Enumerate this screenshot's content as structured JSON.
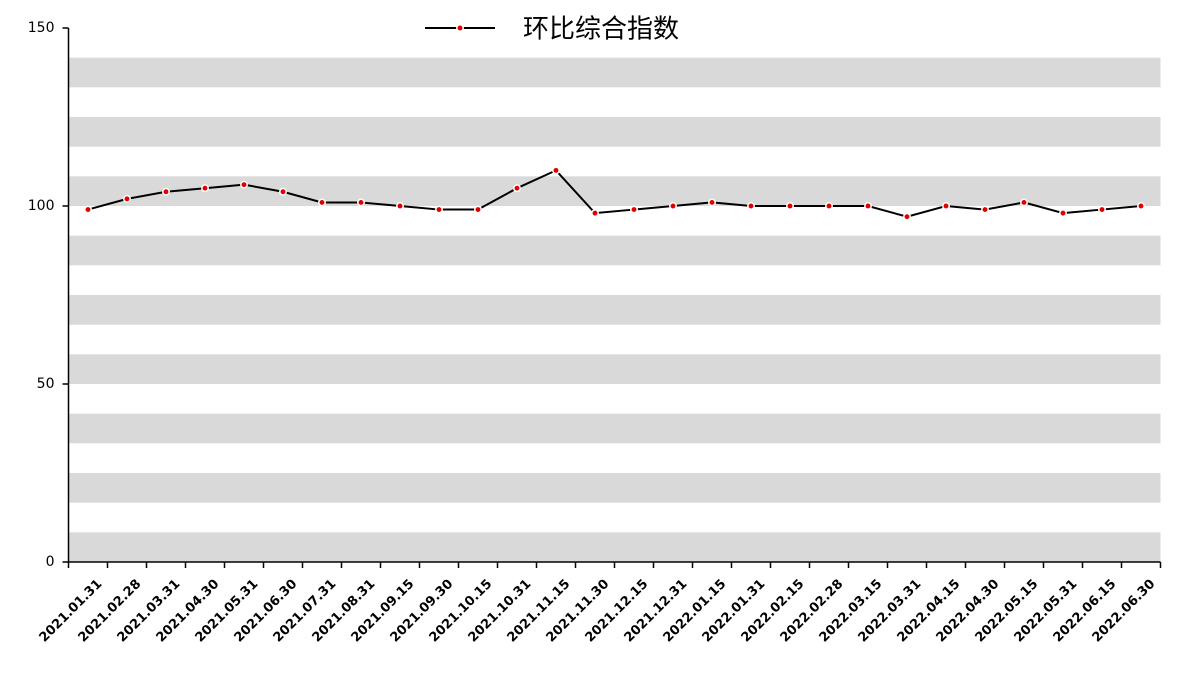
{
  "chart_data": {
    "type": "line",
    "categories": [
      "2021.01.31",
      "2021.02.28",
      "2021.03.31",
      "2021.04.30",
      "2021.05.31",
      "2021.06.30",
      "2021.07.31",
      "2021.08.31",
      "2021.09.15",
      "2021.09.30",
      "2021.10.15",
      "2021.10.31",
      "2021.11.15",
      "2021.11.30",
      "2021.12.15",
      "2021.12.31",
      "2022.01.15",
      "2022.01.31",
      "2022.02.15",
      "2022.02.28",
      "2022.03.15",
      "2022.03.31",
      "2022.04.15",
      "2022.04.30",
      "2022.05.15",
      "2022.05.31",
      "2022.06.15",
      "2022.06.30"
    ],
    "series": [
      {
        "name": "环比综合指数",
        "color": "#000000",
        "marker_color": "#e00000",
        "values": [
          99,
          102,
          104,
          105,
          106,
          104,
          101,
          101,
          100,
          99,
          99,
          105,
          110,
          98,
          99,
          100,
          101,
          100,
          100,
          100,
          100,
          97,
          100,
          99,
          101,
          98,
          99,
          100
        ]
      }
    ],
    "ylim": [
      0,
      150
    ],
    "yticks": [
      0,
      50,
      100,
      150
    ],
    "grid": "bands",
    "legend": "top"
  }
}
